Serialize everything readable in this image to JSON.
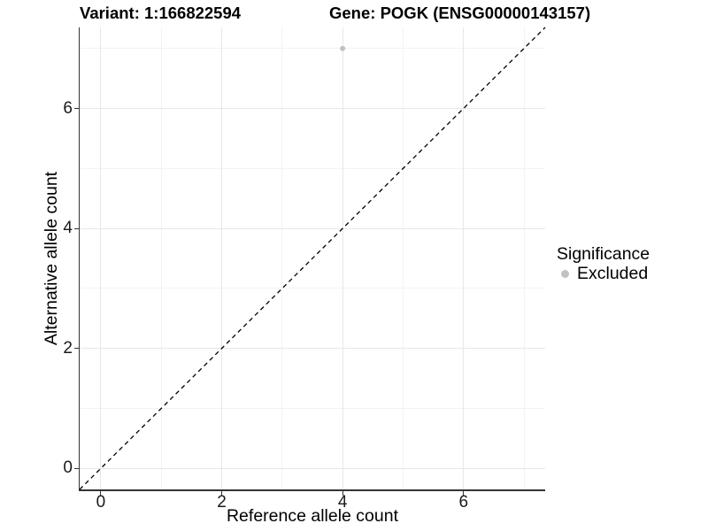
{
  "header": {
    "variant_title": "Variant: 1:166822594",
    "gene_title": "Gene: POGK (ENSG00000143157)"
  },
  "chart_data": {
    "type": "scatter",
    "title": "Variant: 1:166822594   Gene: POGK (ENSG00000143157)",
    "xlabel": "Reference allele count",
    "ylabel": "Alternative allele count",
    "xlim": [
      -0.35,
      7.35
    ],
    "ylim": [
      -0.35,
      7.35
    ],
    "x_ticks": [
      0,
      2,
      4,
      6
    ],
    "y_ticks": [
      0,
      2,
      4,
      6
    ],
    "x_minor_ticks": [
      1,
      3,
      5,
      7
    ],
    "y_minor_ticks": [
      1,
      3,
      5,
      7
    ],
    "grid": true,
    "series": [
      {
        "name": "Excluded",
        "color": "#c2c2c2",
        "points": [
          {
            "x": 4,
            "y": 7
          }
        ]
      }
    ],
    "reference_line": {
      "type": "identity y=x",
      "style": "dashed",
      "color": "#000000"
    },
    "legend": {
      "title": "Significance",
      "position": "right",
      "entries": [
        {
          "label": "Excluded",
          "color": "#c2c2c2"
        }
      ]
    },
    "colors": {
      "grid_major": "#e7e7e7",
      "grid_minor": "#f3f3f3",
      "axis_line": "#333333",
      "point": "#c2c2c2"
    }
  }
}
